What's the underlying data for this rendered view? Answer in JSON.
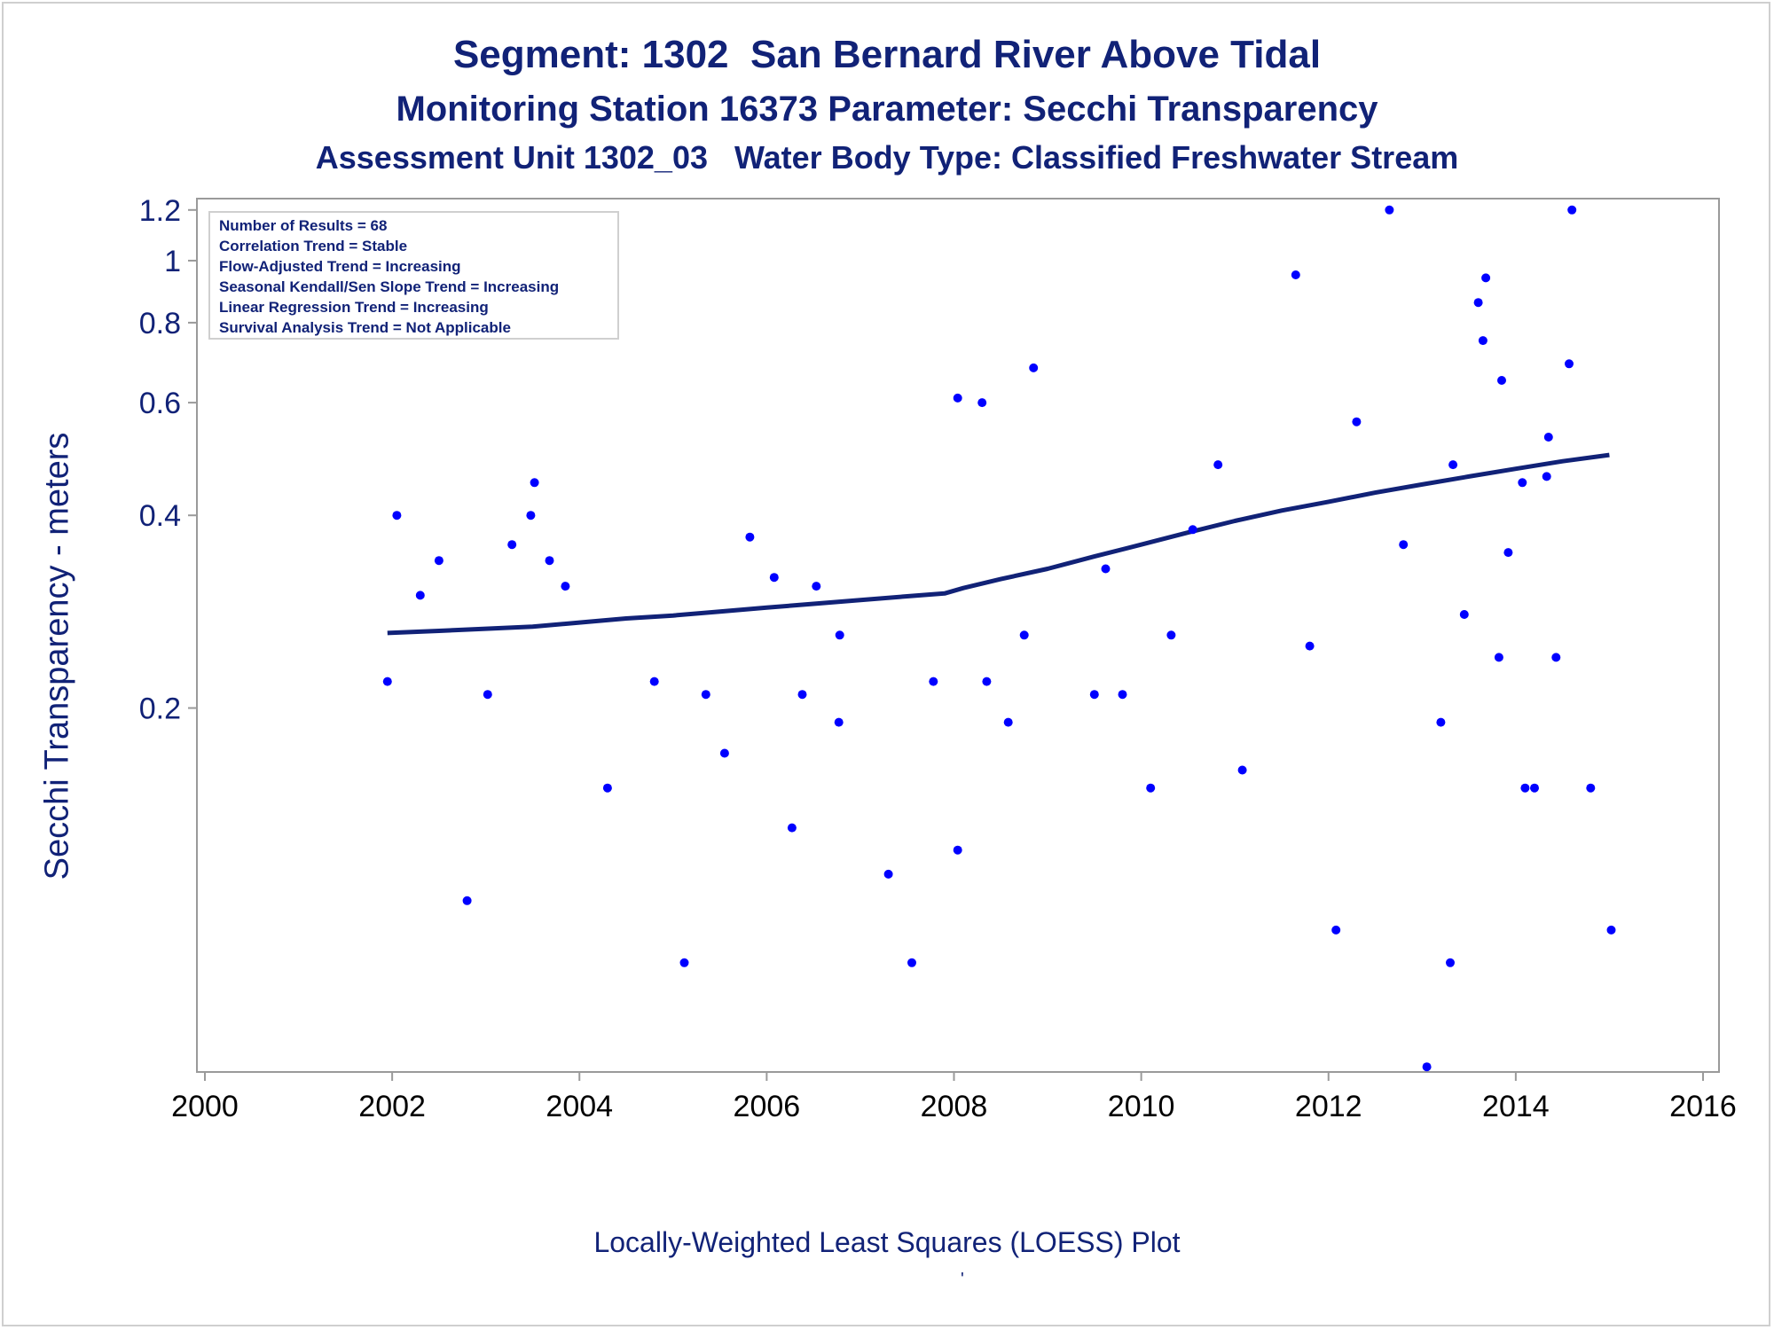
{
  "header": {
    "title": "Segment: 1302  San Bernard River Above Tidal",
    "subtitle": "Monitoring Station 16373 Parameter: Secchi Transparency",
    "subtitle2": "Assessment Unit 1302_03   Water Body Type: Classified Freshwater Stream"
  },
  "footer": {
    "note": "Locally-Weighted Least Squares (LOESS) Plot",
    "mark": "'"
  },
  "chart_data": {
    "type": "scatter",
    "ylabel": "Secchi Transparency - meters",
    "xlabel": "",
    "yscale": "log",
    "xlim": [
      2000,
      2016
    ],
    "ylim": [
      0.054,
      1.25
    ],
    "xticks": [
      "2000",
      "2002",
      "2004",
      "2006",
      "2008",
      "2010",
      "2012",
      "2014",
      "2016"
    ],
    "yticks": [
      "0.2",
      "0.4",
      "0.6",
      "0.8",
      "1",
      "1.2"
    ],
    "grid": false,
    "stats_box": [
      "Number of Results = 68",
      "Correlation Trend = Stable",
      "Flow-Adjusted Trend = Increasing",
      "Seasonal Kendall/Sen Slope Trend = Increasing",
      "Linear Regression Trend = Increasing",
      "Survival Analysis Trend = Not Applicable"
    ],
    "points": [
      [
        2001.95,
        0.22
      ],
      [
        2002.05,
        0.4
      ],
      [
        2002.3,
        0.3
      ],
      [
        2002.5,
        0.34
      ],
      [
        2002.8,
        0.1
      ],
      [
        2003.02,
        0.21
      ],
      [
        2003.28,
        0.36
      ],
      [
        2003.48,
        0.4
      ],
      [
        2003.52,
        0.45
      ],
      [
        2003.68,
        0.34
      ],
      [
        2003.85,
        0.31
      ],
      [
        2004.3,
        0.15
      ],
      [
        2004.8,
        0.22
      ],
      [
        2005.12,
        0.08
      ],
      [
        2005.35,
        0.21
      ],
      [
        2005.55,
        0.17
      ],
      [
        2005.82,
        0.37
      ],
      [
        2006.08,
        0.32
      ],
      [
        2006.27,
        0.13
      ],
      [
        2006.38,
        0.21
      ],
      [
        2006.53,
        0.31
      ],
      [
        2006.77,
        0.19
      ],
      [
        2006.78,
        0.26
      ],
      [
        2007.3,
        0.11
      ],
      [
        2007.55,
        0.08
      ],
      [
        2007.78,
        0.22
      ],
      [
        2008.04,
        0.12
      ],
      [
        2008.04,
        0.61
      ],
      [
        2008.3,
        0.6
      ],
      [
        2008.35,
        0.22
      ],
      [
        2008.58,
        0.19
      ],
      [
        2008.75,
        0.26
      ],
      [
        2008.85,
        0.68
      ],
      [
        2009.5,
        0.21
      ],
      [
        2009.62,
        0.33
      ],
      [
        2009.8,
        0.21
      ],
      [
        2010.1,
        0.15
      ],
      [
        2010.32,
        0.26
      ],
      [
        2010.55,
        0.38
      ],
      [
        2010.82,
        0.48
      ],
      [
        2011.08,
        0.16
      ],
      [
        2011.65,
        0.95
      ],
      [
        2011.8,
        0.25
      ],
      [
        2012.08,
        0.09
      ],
      [
        2012.3,
        0.56
      ],
      [
        2012.65,
        1.2
      ],
      [
        2012.8,
        0.36
      ],
      [
        2013.05,
        0.055
      ],
      [
        2013.2,
        0.19
      ],
      [
        2013.3,
        0.08
      ],
      [
        2013.33,
        0.48
      ],
      [
        2013.45,
        0.28
      ],
      [
        2013.6,
        0.86
      ],
      [
        2013.65,
        0.75
      ],
      [
        2013.68,
        0.94
      ],
      [
        2013.82,
        0.24
      ],
      [
        2013.85,
        0.65
      ],
      [
        2013.92,
        0.35
      ],
      [
        2014.07,
        0.45
      ],
      [
        2014.1,
        0.15
      ],
      [
        2014.2,
        0.15
      ],
      [
        2014.33,
        0.46
      ],
      [
        2014.35,
        0.53
      ],
      [
        2014.43,
        0.24
      ],
      [
        2014.57,
        0.69
      ],
      [
        2014.6,
        1.2
      ],
      [
        2014.8,
        0.15
      ],
      [
        2015.02,
        0.09
      ]
    ],
    "loess": [
      [
        2001.95,
        0.262
      ],
      [
        2002.5,
        0.264
      ],
      [
        2003.0,
        0.266
      ],
      [
        2003.5,
        0.268
      ],
      [
        2004.0,
        0.272
      ],
      [
        2004.5,
        0.276
      ],
      [
        2005.0,
        0.279
      ],
      [
        2005.5,
        0.283
      ],
      [
        2006.0,
        0.287
      ],
      [
        2006.5,
        0.291
      ],
      [
        2007.0,
        0.295
      ],
      [
        2007.5,
        0.299
      ],
      [
        2007.9,
        0.302
      ],
      [
        2008.1,
        0.308
      ],
      [
        2008.5,
        0.318
      ],
      [
        2009.0,
        0.33
      ],
      [
        2009.5,
        0.345
      ],
      [
        2010.0,
        0.36
      ],
      [
        2010.5,
        0.376
      ],
      [
        2011.0,
        0.392
      ],
      [
        2011.5,
        0.407
      ],
      [
        2012.0,
        0.42
      ],
      [
        2012.5,
        0.434
      ],
      [
        2013.0,
        0.447
      ],
      [
        2013.5,
        0.46
      ],
      [
        2014.0,
        0.473
      ],
      [
        2014.5,
        0.486
      ],
      [
        2015.0,
        0.497
      ]
    ],
    "colors": {
      "points": "#0000ff",
      "line": "#112277",
      "text": "#112277",
      "axis": "#9a9a9a"
    }
  }
}
